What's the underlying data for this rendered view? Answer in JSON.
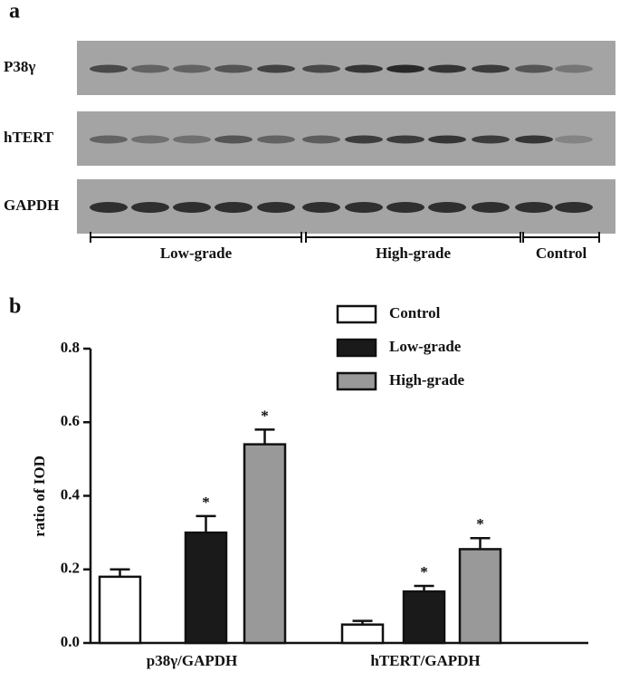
{
  "blot": {
    "label": "a",
    "rows": [
      "P38γ",
      "hTERT",
      "GAPDH"
    ],
    "groups": [
      "Low-grade",
      "High-grade",
      "Control"
    ]
  },
  "chart_data": {
    "type": "bar",
    "label": "b",
    "y_label": "ratio of IOD",
    "categories": [
      "p38γ/GAPDH",
      "hTERT/GAPDH"
    ],
    "series": [
      {
        "name": "Control",
        "color": "#ffffff",
        "values": [
          0.18,
          0.05
        ],
        "errors": [
          0.02,
          0.01
        ],
        "annotations": [
          null,
          null
        ]
      },
      {
        "name": "Low-grade",
        "color": "#1a1a1a",
        "values": [
          0.3,
          0.14
        ],
        "errors": [
          0.045,
          0.015
        ],
        "annotations": [
          "*",
          "*"
        ]
      },
      {
        "name": "High-grade",
        "color": "#999999",
        "values": [
          0.54,
          0.255
        ],
        "errors": [
          0.04,
          0.03
        ],
        "annotations": [
          "*",
          "*"
        ]
      }
    ],
    "ylim": [
      0,
      0.8
    ],
    "yticks": [
      {
        "value": 0,
        "label": "0.0"
      },
      0.2,
      0.4,
      0.6,
      0.8
    ]
  }
}
